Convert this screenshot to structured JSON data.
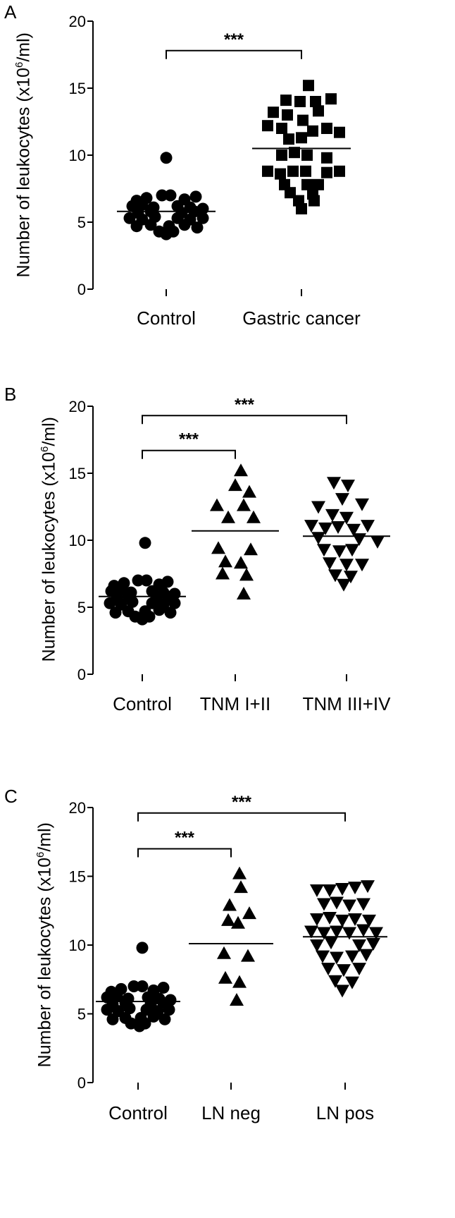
{
  "chart_data": [
    {
      "type": "scatter",
      "panel_label": "A",
      "ylabel_prefix": "Number of leukocytes (x10",
      "ylabel_exp": "6",
      "ylabel_suffix": "/ml)",
      "ylim": [
        0,
        20
      ],
      "yticks": [
        "0",
        "5",
        "10",
        "15",
        "20"
      ],
      "categories": [
        "Control",
        "Gastric cancer"
      ],
      "groups": [
        {
          "category": "Control",
          "marker": "circle",
          "mean": 5.8,
          "points": [
            {
              "dx": 0,
              "y": 9.8
            },
            {
              "dx": -6,
              "y": 7.0
            },
            {
              "dx": 6,
              "y": 7.0
            },
            {
              "dx": -42,
              "y": 6.6
            },
            {
              "dx": -28,
              "y": 6.8
            },
            {
              "dx": 26,
              "y": 6.7
            },
            {
              "dx": 42,
              "y": 6.9
            },
            {
              "dx": -48,
              "y": 6.2
            },
            {
              "dx": -34,
              "y": 6.3
            },
            {
              "dx": -18,
              "y": 6.1
            },
            {
              "dx": 16,
              "y": 6.2
            },
            {
              "dx": 34,
              "y": 6.1
            },
            {
              "dx": 52,
              "y": 6.0
            },
            {
              "dx": -40,
              "y": 5.7
            },
            {
              "dx": -22,
              "y": 5.8
            },
            {
              "dx": 22,
              "y": 5.7
            },
            {
              "dx": 40,
              "y": 5.8
            },
            {
              "dx": -52,
              "y": 5.3
            },
            {
              "dx": -34,
              "y": 5.2
            },
            {
              "dx": -16,
              "y": 5.4
            },
            {
              "dx": 16,
              "y": 5.3
            },
            {
              "dx": 34,
              "y": 5.2
            },
            {
              "dx": 52,
              "y": 5.3
            },
            {
              "dx": -42,
              "y": 4.7
            },
            {
              "dx": -22,
              "y": 4.8
            },
            {
              "dx": 4,
              "y": 4.7
            },
            {
              "dx": 26,
              "y": 4.8
            },
            {
              "dx": 44,
              "y": 4.6
            },
            {
              "dx": -10,
              "y": 4.3
            },
            {
              "dx": 10,
              "y": 4.3
            },
            {
              "dx": 0,
              "y": 4.1
            }
          ]
        },
        {
          "category": "Gastric cancer",
          "marker": "square",
          "mean": 10.5,
          "points": [
            {
              "dx": 10,
              "y": 15.2
            },
            {
              "dx": -22,
              "y": 14.1
            },
            {
              "dx": -2,
              "y": 14.0
            },
            {
              "dx": 20,
              "y": 14.0
            },
            {
              "dx": 42,
              "y": 14.2
            },
            {
              "dx": -40,
              "y": 13.2
            },
            {
              "dx": -20,
              "y": 13.0
            },
            {
              "dx": 24,
              "y": 13.3
            },
            {
              "dx": -48,
              "y": 12.2
            },
            {
              "dx": -28,
              "y": 12.0
            },
            {
              "dx": 2,
              "y": 12.6
            },
            {
              "dx": 16,
              "y": 11.8
            },
            {
              "dx": 36,
              "y": 12.0
            },
            {
              "dx": 54,
              "y": 11.7
            },
            {
              "dx": -18,
              "y": 11.2
            },
            {
              "dx": 0,
              "y": 11.3
            },
            {
              "dx": -28,
              "y": 10.0
            },
            {
              "dx": -10,
              "y": 10.2
            },
            {
              "dx": 8,
              "y": 10.0
            },
            {
              "dx": 36,
              "y": 9.8
            },
            {
              "dx": -48,
              "y": 8.8
            },
            {
              "dx": -30,
              "y": 8.6
            },
            {
              "dx": -12,
              "y": 8.8
            },
            {
              "dx": 6,
              "y": 8.8
            },
            {
              "dx": 36,
              "y": 8.7
            },
            {
              "dx": 54,
              "y": 8.8
            },
            {
              "dx": -24,
              "y": 7.8
            },
            {
              "dx": 8,
              "y": 7.8
            },
            {
              "dx": 24,
              "y": 7.8
            },
            {
              "dx": -16,
              "y": 7.2
            },
            {
              "dx": 16,
              "y": 7.1
            },
            {
              "dx": -4,
              "y": 6.6
            },
            {
              "dx": 18,
              "y": 6.6
            },
            {
              "dx": 0,
              "y": 6.0
            }
          ]
        }
      ],
      "significance": [
        {
          "from": 0,
          "to": 1,
          "level": 17.8,
          "label": "***"
        }
      ]
    },
    {
      "type": "scatter",
      "panel_label": "B",
      "ylabel_prefix": "Number of leukocytes (x10",
      "ylabel_exp": "6",
      "ylabel_suffix": "/ml)",
      "ylim": [
        0,
        20
      ],
      "yticks": [
        "0",
        "5",
        "10",
        "15",
        "20"
      ],
      "categories": [
        "Control",
        "TNM I+II",
        "TNM III+IV"
      ],
      "groups": [
        {
          "category": "Control",
          "marker": "circle",
          "mean": 5.8,
          "points": [
            {
              "dx": 4,
              "y": 9.8
            },
            {
              "dx": -6,
              "y": 7.0
            },
            {
              "dx": 6,
              "y": 7.0
            },
            {
              "dx": -40,
              "y": 6.6
            },
            {
              "dx": -26,
              "y": 6.8
            },
            {
              "dx": 24,
              "y": 6.7
            },
            {
              "dx": 36,
              "y": 6.9
            },
            {
              "dx": -44,
              "y": 6.2
            },
            {
              "dx": -30,
              "y": 6.3
            },
            {
              "dx": -16,
              "y": 6.1
            },
            {
              "dx": 14,
              "y": 6.2
            },
            {
              "dx": 30,
              "y": 6.1
            },
            {
              "dx": 46,
              "y": 6.0
            },
            {
              "dx": -36,
              "y": 5.7
            },
            {
              "dx": -20,
              "y": 5.8
            },
            {
              "dx": 20,
              "y": 5.7
            },
            {
              "dx": 36,
              "y": 5.8
            },
            {
              "dx": -46,
              "y": 5.3
            },
            {
              "dx": -30,
              "y": 5.2
            },
            {
              "dx": -14,
              "y": 5.4
            },
            {
              "dx": 14,
              "y": 5.3
            },
            {
              "dx": 30,
              "y": 5.2
            },
            {
              "dx": 46,
              "y": 5.3
            },
            {
              "dx": -38,
              "y": 4.6
            },
            {
              "dx": -20,
              "y": 4.7
            },
            {
              "dx": 4,
              "y": 4.7
            },
            {
              "dx": 24,
              "y": 4.8
            },
            {
              "dx": 40,
              "y": 4.6
            },
            {
              "dx": -10,
              "y": 4.3
            },
            {
              "dx": 10,
              "y": 4.3
            },
            {
              "dx": 0,
              "y": 4.1
            }
          ]
        },
        {
          "category": "TNM I+II",
          "marker": "triangle-up",
          "mean": 10.7,
          "points": [
            {
              "dx": 8,
              "y": 15.2
            },
            {
              "dx": 0,
              "y": 14.1
            },
            {
              "dx": 20,
              "y": 13.6
            },
            {
              "dx": -26,
              "y": 12.6
            },
            {
              "dx": 12,
              "y": 12.6
            },
            {
              "dx": -10,
              "y": 11.7
            },
            {
              "dx": 26,
              "y": 11.7
            },
            {
              "dx": -24,
              "y": 9.4
            },
            {
              "dx": 22,
              "y": 9.3
            },
            {
              "dx": -14,
              "y": 8.4
            },
            {
              "dx": 8,
              "y": 8.3
            },
            {
              "dx": -18,
              "y": 7.5
            },
            {
              "dx": 16,
              "y": 7.4
            },
            {
              "dx": 12,
              "y": 6.0
            }
          ]
        },
        {
          "category": "TNM III+IV",
          "marker": "triangle-down",
          "mean": 10.3,
          "points": [
            {
              "dx": -18,
              "y": 14.3
            },
            {
              "dx": 2,
              "y": 14.1
            },
            {
              "dx": -6,
              "y": 13.1
            },
            {
              "dx": -40,
              "y": 12.5
            },
            {
              "dx": 22,
              "y": 12.7
            },
            {
              "dx": -20,
              "y": 11.9
            },
            {
              "dx": 0,
              "y": 11.7
            },
            {
              "dx": -50,
              "y": 11.1
            },
            {
              "dx": -30,
              "y": 10.9
            },
            {
              "dx": -12,
              "y": 11.0
            },
            {
              "dx": 10,
              "y": 10.8
            },
            {
              "dx": 30,
              "y": 11.1
            },
            {
              "dx": -40,
              "y": 10.2
            },
            {
              "dx": 18,
              "y": 10.1
            },
            {
              "dx": 44,
              "y": 9.9
            },
            {
              "dx": -32,
              "y": 9.3
            },
            {
              "dx": -10,
              "y": 9.2
            },
            {
              "dx": 8,
              "y": 9.3
            },
            {
              "dx": -24,
              "y": 8.3
            },
            {
              "dx": 0,
              "y": 8.2
            },
            {
              "dx": 22,
              "y": 8.2
            },
            {
              "dx": -16,
              "y": 7.4
            },
            {
              "dx": 6,
              "y": 7.3
            },
            {
              "dx": -4,
              "y": 6.7
            }
          ]
        }
      ],
      "significance": [
        {
          "from": 0,
          "to": 2,
          "level": 19.3,
          "label": "***"
        },
        {
          "from": 0,
          "to": 1,
          "level": 16.7,
          "label": "***"
        }
      ]
    },
    {
      "type": "scatter",
      "panel_label": "C",
      "ylabel_prefix": "Number of leukocytes (x10",
      "ylabel_exp": "6",
      "ylabel_suffix": "/ml)",
      "ylim": [
        0,
        20
      ],
      "yticks": [
        "0",
        "5",
        "10",
        "15",
        "20"
      ],
      "categories": [
        "Control",
        "LN neg",
        "LN pos"
      ],
      "groups": [
        {
          "category": "Control",
          "marker": "circle",
          "mean": 5.9,
          "points": [
            {
              "dx": 6,
              "y": 9.8
            },
            {
              "dx": -6,
              "y": 7.0
            },
            {
              "dx": 6,
              "y": 7.0
            },
            {
              "dx": -38,
              "y": 6.6
            },
            {
              "dx": -24,
              "y": 6.8
            },
            {
              "dx": 22,
              "y": 6.7
            },
            {
              "dx": 36,
              "y": 6.9
            },
            {
              "dx": -44,
              "y": 6.2
            },
            {
              "dx": -30,
              "y": 6.3
            },
            {
              "dx": -14,
              "y": 6.1
            },
            {
              "dx": 14,
              "y": 6.2
            },
            {
              "dx": 30,
              "y": 6.1
            },
            {
              "dx": 46,
              "y": 6.0
            },
            {
              "dx": -36,
              "y": 5.7
            },
            {
              "dx": -18,
              "y": 5.8
            },
            {
              "dx": 18,
              "y": 5.7
            },
            {
              "dx": 36,
              "y": 5.8
            },
            {
              "dx": -44,
              "y": 5.3
            },
            {
              "dx": -28,
              "y": 5.2
            },
            {
              "dx": -12,
              "y": 5.4
            },
            {
              "dx": 12,
              "y": 5.3
            },
            {
              "dx": 28,
              "y": 5.2
            },
            {
              "dx": 44,
              "y": 5.3
            },
            {
              "dx": -36,
              "y": 4.6
            },
            {
              "dx": -18,
              "y": 4.7
            },
            {
              "dx": 4,
              "y": 4.7
            },
            {
              "dx": 22,
              "y": 4.8
            },
            {
              "dx": 38,
              "y": 4.6
            },
            {
              "dx": -10,
              "y": 4.3
            },
            {
              "dx": 10,
              "y": 4.3
            },
            {
              "dx": 2,
              "y": 4.1
            }
          ]
        },
        {
          "category": "LN neg",
          "marker": "triangle-up",
          "mean": 10.1,
          "points": [
            {
              "dx": 12,
              "y": 15.2
            },
            {
              "dx": 14,
              "y": 14.2
            },
            {
              "dx": -2,
              "y": 12.9
            },
            {
              "dx": 26,
              "y": 12.3
            },
            {
              "dx": -4,
              "y": 11.8
            },
            {
              "dx": 10,
              "y": 11.6
            },
            {
              "dx": -10,
              "y": 9.4
            },
            {
              "dx": 24,
              "y": 9.2
            },
            {
              "dx": -8,
              "y": 7.6
            },
            {
              "dx": 12,
              "y": 7.3
            },
            {
              "dx": 8,
              "y": 6.0
            }
          ]
        },
        {
          "category": "LN pos",
          "marker": "triangle-down",
          "mean": 10.6,
          "points": [
            {
              "dx": -40,
              "y": 14.0
            },
            {
              "dx": -22,
              "y": 14.0
            },
            {
              "dx": -4,
              "y": 14.1
            },
            {
              "dx": 14,
              "y": 14.2
            },
            {
              "dx": 32,
              "y": 14.3
            },
            {
              "dx": -30,
              "y": 13.0
            },
            {
              "dx": -12,
              "y": 13.1
            },
            {
              "dx": 6,
              "y": 12.9
            },
            {
              "dx": 26,
              "y": 13.0
            },
            {
              "dx": -40,
              "y": 11.9
            },
            {
              "dx": -22,
              "y": 12.0
            },
            {
              "dx": -4,
              "y": 11.8
            },
            {
              "dx": 14,
              "y": 11.9
            },
            {
              "dx": 34,
              "y": 11.8
            },
            {
              "dx": -48,
              "y": 11.0
            },
            {
              "dx": -30,
              "y": 10.9
            },
            {
              "dx": -12,
              "y": 11.0
            },
            {
              "dx": 6,
              "y": 10.9
            },
            {
              "dx": 26,
              "y": 11.1
            },
            {
              "dx": 44,
              "y": 10.9
            },
            {
              "dx": -40,
              "y": 10.0
            },
            {
              "dx": -20,
              "y": 10.2
            },
            {
              "dx": 20,
              "y": 10.0
            },
            {
              "dx": 40,
              "y": 10.1
            },
            {
              "dx": -32,
              "y": 9.2
            },
            {
              "dx": -12,
              "y": 9.1
            },
            {
              "dx": 10,
              "y": 9.2
            },
            {
              "dx": 30,
              "y": 9.3
            },
            {
              "dx": -24,
              "y": 8.3
            },
            {
              "dx": -2,
              "y": 8.2
            },
            {
              "dx": 20,
              "y": 8.3
            },
            {
              "dx": -14,
              "y": 7.4
            },
            {
              "dx": 10,
              "y": 7.3
            },
            {
              "dx": -4,
              "y": 6.7
            }
          ]
        }
      ],
      "significance": [
        {
          "from": 0,
          "to": 2,
          "level": 19.6,
          "label": "***"
        },
        {
          "from": 0,
          "to": 1,
          "level": 17.0,
          "label": "***"
        }
      ]
    }
  ]
}
